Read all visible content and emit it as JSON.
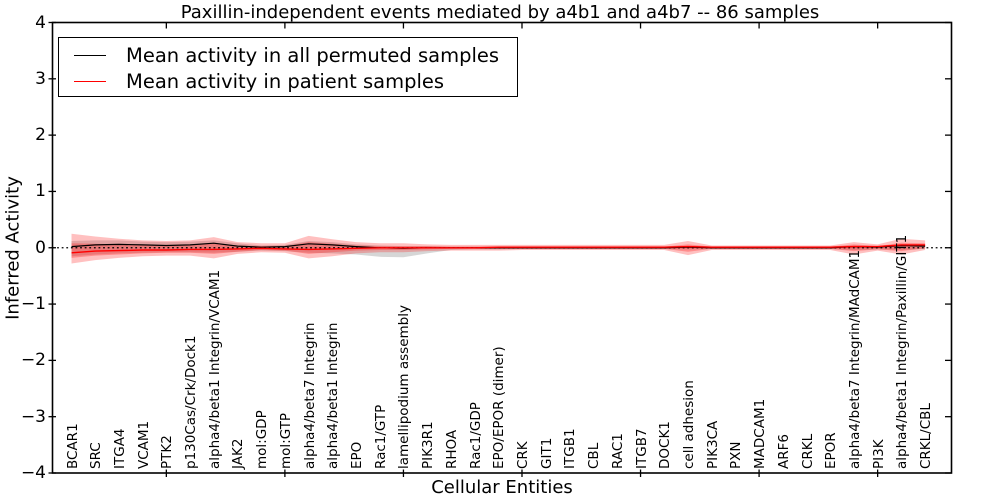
{
  "figure_bg": "#ffffff",
  "chart_data": {
    "type": "line",
    "title": "Paxillin-independent events mediated by a4b1 and a4b7 -- 86 samples",
    "xlabel": "Cellular Entities",
    "ylabel": "Inferred Activity",
    "ylim": [
      -4,
      4
    ],
    "yticks": [
      -4,
      -3,
      -2,
      -1,
      0,
      1,
      2,
      3,
      4
    ],
    "grid": false,
    "legend_position": "upper left",
    "zero_line": {
      "style": "dotted",
      "color": "#000000",
      "y": 0
    },
    "xtick_indices": [
      4,
      9,
      14,
      19,
      24,
      29,
      34
    ],
    "categories": [
      "BCAR1",
      "SRC",
      "ITGA4",
      "VCAM1",
      "PTK2",
      "p130Cas/Crk/Dock1",
      "alpha4/beta1 Integrin/VCAM1",
      "JAK2",
      "mol:GDP",
      "mol:GTP",
      "alpha4/beta7 Integrin",
      "alpha4/beta1 Integrin",
      "EPO",
      "Rac1/GTP",
      "lamellipodium assembly",
      "PIK3R1",
      "RHOA",
      "Rac1/GDP",
      "EPO/EPOR (dimer)",
      "CRK",
      "GIT1",
      "ITGB1",
      "CBL",
      "RAC1",
      "ITGB7",
      "DOCK1",
      "cell adhesion",
      "PIK3CA",
      "PXN",
      "MADCAM1",
      "ARF6",
      "CRKL",
      "EPOR",
      "alpha4/beta7 Integrin/MAdCAM1",
      "PI3K",
      "alpha4/beta1 Integrin/Paxillin/GIT1",
      "CRKL/CBL"
    ],
    "series": [
      {
        "name": "Mean activity in all permuted samples",
        "color": "#000000",
        "values": [
          0.02,
          0.05,
          0.06,
          0.05,
          0.04,
          0.05,
          0.08,
          0.03,
          0.01,
          0.02,
          0.07,
          0.05,
          0.02,
          0.0,
          -0.01,
          0.0,
          0.0,
          0.0,
          0.0,
          0.0,
          0.0,
          0.0,
          0.0,
          0.0,
          0.0,
          0.0,
          0.01,
          0.0,
          0.0,
          0.0,
          0.0,
          0.0,
          0.0,
          0.02,
          0.01,
          0.04,
          0.03
        ]
      },
      {
        "name": "Mean activity in patient samples",
        "color": "#ff0000",
        "values": [
          -0.09,
          -0.06,
          -0.05,
          -0.04,
          -0.04,
          -0.03,
          -0.03,
          -0.02,
          -0.01,
          -0.02,
          -0.03,
          -0.02,
          -0.01,
          0.0,
          0.0,
          0.0,
          0.0,
          0.0,
          0.01,
          0.01,
          0.01,
          0.01,
          0.01,
          0.01,
          0.01,
          0.01,
          0.02,
          0.01,
          0.01,
          0.01,
          0.01,
          0.01,
          0.01,
          0.02,
          0.02,
          0.05,
          0.05
        ]
      }
    ],
    "bands": [
      {
        "name": "permuted-samples-spread",
        "color": "rgba(90,90,90,0.25)",
        "upper": [
          0.12,
          0.13,
          0.13,
          0.11,
          0.1,
          0.11,
          0.13,
          0.08,
          0.04,
          0.05,
          0.12,
          0.1,
          0.06,
          0.04,
          0.03,
          0.03,
          0.02,
          0.02,
          0.02,
          0.02,
          0.02,
          0.02,
          0.02,
          0.02,
          0.02,
          0.02,
          0.03,
          0.02,
          0.02,
          0.02,
          0.02,
          0.02,
          0.02,
          0.04,
          0.03,
          0.06,
          0.05
        ],
        "lower": [
          -0.15,
          -0.12,
          -0.1,
          -0.09,
          -0.08,
          -0.08,
          -0.09,
          -0.07,
          -0.05,
          -0.06,
          -0.09,
          -0.1,
          -0.12,
          -0.16,
          -0.17,
          -0.1,
          -0.04,
          -0.03,
          -0.03,
          -0.02,
          -0.02,
          -0.02,
          -0.02,
          -0.02,
          -0.02,
          -0.02,
          -0.03,
          -0.02,
          -0.02,
          -0.02,
          -0.02,
          -0.02,
          -0.02,
          -0.04,
          -0.03,
          -0.04,
          -0.02
        ]
      },
      {
        "name": "patient-samples-spread-outer",
        "color": "rgba(255,30,30,0.28)",
        "upper": [
          0.25,
          0.2,
          0.16,
          0.13,
          0.12,
          0.13,
          0.19,
          0.1,
          0.08,
          0.08,
          0.21,
          0.15,
          0.1,
          0.08,
          0.08,
          0.06,
          0.05,
          0.05,
          0.05,
          0.05,
          0.05,
          0.05,
          0.05,
          0.05,
          0.05,
          0.05,
          0.12,
          0.04,
          0.04,
          0.04,
          0.04,
          0.04,
          0.04,
          0.1,
          0.06,
          0.16,
          0.13
        ],
        "lower": [
          -0.28,
          -0.22,
          -0.18,
          -0.15,
          -0.14,
          -0.14,
          -0.19,
          -0.11,
          -0.08,
          -0.09,
          -0.19,
          -0.15,
          -0.1,
          -0.08,
          -0.08,
          -0.06,
          -0.05,
          -0.05,
          -0.05,
          -0.04,
          -0.04,
          -0.04,
          -0.04,
          -0.04,
          -0.04,
          -0.04,
          -0.13,
          -0.04,
          -0.04,
          -0.04,
          -0.04,
          -0.04,
          -0.04,
          -0.12,
          -0.05,
          -0.12,
          -0.04
        ]
      },
      {
        "name": "patient-samples-spread-inner",
        "color": "rgba(255,30,30,0.32)",
        "upper": [
          0.08,
          0.07,
          0.06,
          0.05,
          0.04,
          0.05,
          0.09,
          0.04,
          0.03,
          0.03,
          0.1,
          0.07,
          0.04,
          0.03,
          0.03,
          0.03,
          0.02,
          0.02,
          0.02,
          0.02,
          0.02,
          0.02,
          0.02,
          0.02,
          0.02,
          0.02,
          0.06,
          0.02,
          0.02,
          0.02,
          0.02,
          0.02,
          0.02,
          0.06,
          0.03,
          0.09,
          0.08
        ],
        "lower": [
          -0.18,
          -0.14,
          -0.12,
          -0.1,
          -0.09,
          -0.09,
          -0.11,
          -0.07,
          -0.04,
          -0.05,
          -0.11,
          -0.08,
          -0.05,
          -0.04,
          -0.04,
          -0.03,
          -0.02,
          -0.02,
          -0.02,
          -0.02,
          -0.02,
          -0.02,
          -0.02,
          -0.02,
          -0.02,
          -0.02,
          -0.07,
          -0.02,
          -0.02,
          -0.02,
          -0.02,
          -0.02,
          -0.02,
          -0.06,
          -0.03,
          -0.06,
          -0.01
        ]
      }
    ]
  }
}
